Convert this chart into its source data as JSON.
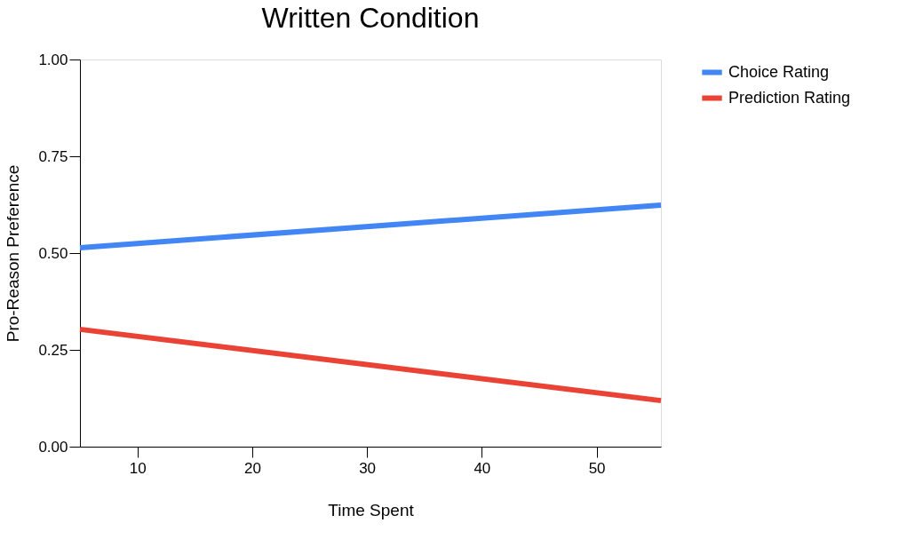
{
  "chart_data": {
    "type": "line",
    "title": "Written Condition",
    "xlabel": "Time Spent",
    "ylabel": "Pro-Reason Preference",
    "x": [
      5,
      55.6
    ],
    "series": [
      {
        "name": "Choice Rating",
        "color": "#4285f4",
        "values": [
          0.514,
          0.624
        ]
      },
      {
        "name": "Prediction Rating",
        "color": "#ea4335",
        "values": [
          0.303,
          0.119
        ]
      }
    ],
    "xlim": [
      5,
      55.6
    ],
    "xticks": [
      10,
      20,
      30,
      40,
      50
    ],
    "ylim": [
      0,
      1
    ],
    "yticks": [
      {
        "value": 0,
        "label": "0.00"
      },
      {
        "value": 0.25,
        "label": "0.25"
      },
      {
        "value": 0.5,
        "label": "0.50"
      },
      {
        "value": 0.75,
        "label": "0.75"
      },
      {
        "value": 1,
        "label": "1.00"
      }
    ],
    "grid": false,
    "legend": "top right",
    "marker": "none",
    "line_style": "solid"
  }
}
